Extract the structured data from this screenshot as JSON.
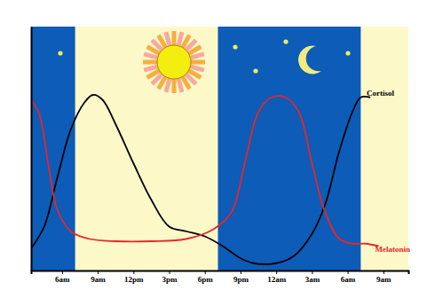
{
  "chart_data": {
    "type": "line",
    "x_ticks_note_free": null,
    "xlim": [
      3.4,
      35.1
    ],
    "xticks": [
      {
        "value": 6,
        "label": "6am"
      },
      {
        "value": 9,
        "label": "9am"
      },
      {
        "value": 12,
        "label": "12pm"
      },
      {
        "value": 15,
        "label": "3pm"
      },
      {
        "value": 18,
        "label": "6pm"
      },
      {
        "value": 21,
        "label": "9pm"
      },
      {
        "value": 24,
        "label": "12am"
      },
      {
        "value": 27,
        "label": "3am"
      },
      {
        "value": 30,
        "label": "6am"
      },
      {
        "value": 33,
        "label": "9am"
      }
    ],
    "ylim": [
      0,
      100
    ],
    "yticks": [],
    "tick_labels": "x",
    "night": [
      [
        3.4,
        7.1
      ],
      [
        19.1,
        31.1
      ]
    ],
    "series": [
      {
        "name": "Cortisol",
        "color": "#000000",
        "x": [
          3.4,
          4.5,
          5.6,
          6.75,
          7.9,
          8.6,
          9.4,
          10.5,
          12,
          13.5,
          15,
          16.5,
          18,
          19.5,
          21,
          22.1,
          24,
          25.5,
          27,
          28.1,
          29.3,
          30.4,
          31.1,
          31.9
        ],
        "values": [
          9,
          18,
          38,
          58,
          69,
          72,
          70,
          60,
          44,
          29,
          18,
          16,
          14,
          10,
          5,
          3,
          3,
          6,
          15,
          27,
          49,
          65,
          71,
          71
        ]
      },
      {
        "name": "Melatonin",
        "color": "#e8262b",
        "x": [
          3.4,
          4.1,
          4.9,
          5.6,
          6.75,
          8.25,
          10.5,
          13.5,
          16.5,
          18.75,
          20.25,
          21.4,
          22.5,
          23.6,
          24.75,
          25.9,
          27,
          28.1,
          29.3,
          30.4,
          31.5,
          32.6
        ],
        "values": [
          70,
          64,
          42,
          25,
          16,
          13,
          12,
          12,
          13,
          17,
          24,
          45,
          65,
          71,
          71,
          65,
          44,
          24,
          13,
          11,
          11,
          10
        ]
      }
    ]
  }
}
